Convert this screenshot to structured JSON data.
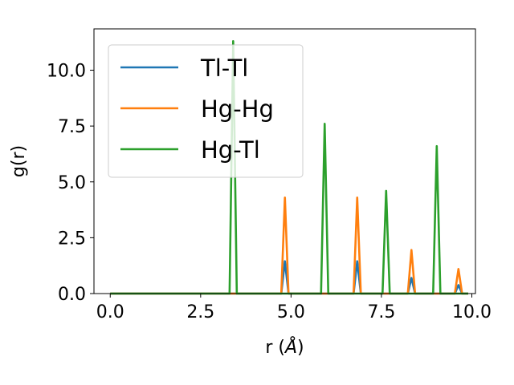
{
  "chart_data": {
    "type": "line",
    "xlabel_prefix": "r (",
    "xlabel_unit": "Å",
    "xlabel_suffix": ")",
    "ylabel": "g(r)",
    "xlim": [
      -0.45,
      10.1
    ],
    "ylim": [
      0,
      11.85
    ],
    "xticks": [
      0.0,
      2.5,
      5.0,
      7.5,
      10.0
    ],
    "xtick_labels": [
      "0.0",
      "2.5",
      "5.0",
      "7.5",
      "10.0"
    ],
    "yticks": [
      0.0,
      2.5,
      5.0,
      7.5,
      10.0
    ],
    "ytick_labels": [
      "0.0",
      "2.5",
      "5.0",
      "7.5",
      "10.0"
    ],
    "grid": false,
    "legend_position": "top-left",
    "series": [
      {
        "name": "Tl-Tl",
        "color": "#1f77b4",
        "x": [
          0.0,
          4.73,
          4.83,
          4.93,
          5.83,
          5.93,
          6.03,
          6.73,
          6.83,
          6.93,
          7.53,
          7.63,
          7.73,
          8.23,
          8.33,
          8.43,
          8.93,
          9.03,
          9.13,
          9.53,
          9.63,
          9.73,
          9.9
        ],
        "y": [
          0.0,
          0.0,
          1.45,
          0.0,
          0.0,
          0.0,
          0.0,
          0.0,
          1.45,
          0.0,
          0.0,
          0.0,
          0.0,
          0.0,
          0.7,
          0.0,
          0.0,
          0.0,
          0.0,
          0.0,
          0.38,
          0.0,
          0.0
        ]
      },
      {
        "name": "Hg-Hg",
        "color": "#ff7f0e",
        "x": [
          0.0,
          4.73,
          4.83,
          4.93,
          5.83,
          5.93,
          6.03,
          6.73,
          6.83,
          6.93,
          7.53,
          7.63,
          7.73,
          8.23,
          8.33,
          8.43,
          8.93,
          9.03,
          9.13,
          9.53,
          9.63,
          9.73,
          9.9
        ],
        "y": [
          0.0,
          0.0,
          4.3,
          0.0,
          0.0,
          0.0,
          0.0,
          0.0,
          4.3,
          0.0,
          0.0,
          0.0,
          0.0,
          0.0,
          1.95,
          0.0,
          0.0,
          0.0,
          0.0,
          0.0,
          1.1,
          0.0,
          0.0
        ]
      },
      {
        "name": "Hg-Tl",
        "color": "#2ca02c",
        "x": [
          0.0,
          3.3,
          3.4,
          3.5,
          5.83,
          5.93,
          6.03,
          7.53,
          7.63,
          7.73,
          8.93,
          9.03,
          9.13,
          9.9
        ],
        "y": [
          0.0,
          0.0,
          11.3,
          0.0,
          0.0,
          7.6,
          0.0,
          0.0,
          4.6,
          0.0,
          0.0,
          6.6,
          0.0,
          0.0
        ]
      }
    ]
  }
}
